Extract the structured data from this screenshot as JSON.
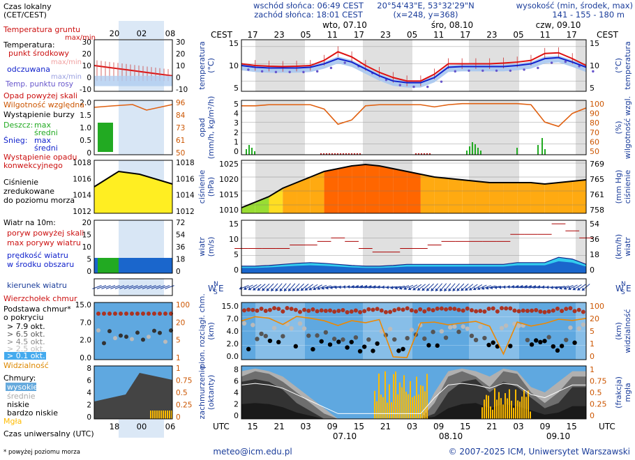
{
  "header": {
    "sunrise": "wschód słońca: 06:49 CEST",
    "sunset": "zachód słońca: 18:01 CEST",
    "coords": "20°54'43\"E, 53°32'29\"N",
    "grid": "(x=248, y=368)",
    "height_label": "wysokość (min, środek, max)",
    "height_values": "141 - 155 - 180 m"
  },
  "legend": {
    "local_time": "Czas lokalny",
    "local_time_sub": "(CET/CEST)",
    "soil_temp": "Temperatura gruntu",
    "soil_temp_sub": "max/min",
    "temperature": "Temperatura:",
    "mid_point": "punkt środkowy",
    "max_min": "max/min",
    "felt": "odczuwana",
    "felt_max_min": "max/min",
    "dew_point": "Temp. punktu rosy",
    "precip_above": "Opad powyżej skali",
    "rel_humidity": "Wilgotność względna",
    "storm": "Wystąpienie burzy",
    "rain": "Deszcz:",
    "rain_max": "max",
    "rain_mid": "średni",
    "snow": "Śnieg:",
    "snow_max": "max",
    "snow_mid": "średni",
    "conv": "Wystąpienie opadu",
    "conv2": "konwekcyjnego",
    "pressure1": "Ciśnienie",
    "pressure2": "zredukowane",
    "pressure3": "do poziomu morza",
    "wind_title": "Wiatr na 10m:",
    "gust_above": "poryw powyżej skali",
    "gust_max": "max porywy wiatru",
    "wind_speed": "prędkość wiatru",
    "wind_speed2": "w środku obszaru",
    "wind_dir": "kierunek wiatru",
    "cloud_top": "Wierzchołek chmur",
    "cloud_base": "Podstawa chmur*",
    "coverage": "o pokryciu",
    "okt1": "> 7.9 okt.",
    "okt2": "> 6.5 okt.",
    "okt3": "> 4.5 okt.",
    "okt4": "> 2.5 okt.",
    "okt5": "> 0.1 okt.",
    "visibility": "Widzialność",
    "clouds": "Chmury:",
    "high": "wysokie",
    "mid": "średnie",
    "low": "niskie",
    "very_low": "bardzo niskie",
    "fog": "Mgła",
    "utc_time": "Czas uniwersalny (UTC)",
    "footnote": "* powyżej poziomu morza"
  },
  "mini_ticks_top": [
    "20",
    "02",
    "08"
  ],
  "mini_ticks_bottom": [
    "18",
    "00",
    "06"
  ],
  "top_axis": {
    "tz": "CEST",
    "hours": [
      "17",
      "23",
      "05",
      "11",
      "17",
      "23",
      "05",
      "11",
      "17",
      "23",
      "05",
      "11",
      "17"
    ],
    "days": [
      "wto, 07.10",
      "śro, 08.10",
      "czw, 09.10"
    ]
  },
  "bottom_axis": {
    "tz": "UTC",
    "hours": [
      "15",
      "21",
      "03",
      "09",
      "15",
      "21",
      "03",
      "09",
      "15",
      "21",
      "03",
      "09",
      "15"
    ],
    "dates": [
      "07.10",
      "08.10",
      "09.10"
    ]
  },
  "panels": {
    "temp": {
      "left": "temperatura",
      "left2": "(°C)",
      "right": "temperatura",
      "right2": "(°C)",
      "ticks": [
        "15",
        "10",
        "5"
      ],
      "ticks_r": [
        "15",
        "10",
        "5"
      ]
    },
    "precip": {
      "left": "opad",
      "left2": "(mm/h, kg/m²/h)",
      "right": "wilgotność wzgl.",
      "right2": "(%)",
      "ticks": [
        "5",
        "4",
        "3",
        "2",
        "1",
        "0"
      ],
      "ticks_r": [
        "100",
        "90",
        "80",
        "70",
        "60",
        "50"
      ]
    },
    "press": {
      "left": "ciśnienie",
      "left2": "(hPa)",
      "right": "ciśnienie",
      "right2": "(mm Hg)",
      "ticks": [
        "1025",
        "1020",
        "1015",
        "1010"
      ],
      "ticks_r": [
        "769",
        "765",
        "761",
        "758"
      ]
    },
    "wind": {
      "left": "wiatr",
      "left2": "(m/s)",
      "right": "wiatr",
      "right2": "(km/h)",
      "ticks": [
        "15",
        "10",
        "5",
        "0"
      ],
      "ticks_r": [
        "54",
        "36",
        "18",
        "0"
      ]
    },
    "cloud": {
      "left": "pion. rozciągł. chm.",
      "left2": "(km)",
      "right": "widzialność",
      "right2": "(km)",
      "ticks": [
        "15.0",
        "7.0",
        "4.0",
        "2.0",
        "0.0"
      ],
      "ticks_r": [
        "100",
        "20",
        "5",
        "1",
        "0"
      ]
    },
    "cover": {
      "left": "zachmurzenie",
      "left2": "(oktanty)",
      "right": "mgła",
      "right2": "(frakcja)",
      "ticks": [
        "8",
        "6",
        "4",
        "2",
        "0"
      ],
      "ticks_r": [
        "1",
        "0.75",
        "0.5",
        "0.25",
        "0"
      ]
    }
  },
  "mini_ticks": {
    "temp": [
      "30",
      "20",
      "10",
      "0",
      "-10"
    ],
    "temp_r": [
      "30",
      "20",
      "10",
      "0",
      "-10"
    ],
    "precip": [
      "2.0",
      "1.5",
      "1.0",
      "0.5",
      "0"
    ],
    "precip_r": [
      "96",
      "84",
      "73",
      "61",
      "50"
    ],
    "press": [
      "1018",
      "1016",
      "1014",
      "1012"
    ],
    "press_r": [
      "1018",
      "1016",
      "1014",
      "1012"
    ],
    "wind": [
      "20",
      "15",
      "10",
      "5",
      "0"
    ],
    "wind_r": [
      "72",
      "54",
      "36",
      "18",
      "0"
    ],
    "cloud": [
      "15.0",
      "7.0",
      "2.0",
      "0.0"
    ],
    "cloud_r": [
      "100",
      "20",
      "5",
      "1"
    ],
    "cover": [
      "8",
      "6",
      "4",
      "2",
      "0"
    ],
    "cover_r": [
      "1",
      "0.75",
      "0.5",
      "0.25",
      "0"
    ]
  },
  "footer": {
    "email": "meteo@icm.edu.pl",
    "copyright": "© 2007-2025 ICM, Uniwersytet Warszawski"
  },
  "colors": {
    "temp": "#dd1111",
    "felt": "#1122cc",
    "dew": "#6655cc",
    "humidity": "#e06010",
    "rain": "#22aa22",
    "wind": "#1a4fc0",
    "gust": "#aa0000",
    "visibility": "#ee8800",
    "fog": "#ffbb00",
    "pressure_low": "#99dd33",
    "pressure_mid": "#ffdd22",
    "pressure_high": "#ff6600"
  },
  "chart_data": {
    "type": "line",
    "x_hours_utc": [
      15,
      18,
      21,
      0,
      3,
      6,
      9,
      12,
      15,
      18,
      21,
      0,
      3,
      6,
      9,
      12,
      15,
      18,
      21,
      0,
      3,
      6,
      9,
      12,
      15,
      18
    ],
    "temperature_c": [
      10,
      9.5,
      9.3,
      9.2,
      9.3,
      9.5,
      11,
      13.5,
      12,
      9.5,
      7.5,
      6,
      5,
      5,
      7,
      10,
      10,
      10,
      10,
      10.2,
      10.5,
      11,
      13,
      13.2,
      11.5,
      9.5
    ],
    "felt_temperature_c": [
      9.5,
      9,
      8.8,
      8.8,
      8.8,
      9,
      10,
      11.5,
      10.5,
      8.5,
      6.5,
      5,
      4.5,
      4.5,
      6,
      9,
      9.2,
      9.2,
      9.2,
      9.2,
      9.5,
      10,
      11.5,
      11.8,
      10.5,
      9
    ],
    "relative_humidity_pct": [
      95,
      95,
      96,
      96,
      96,
      96,
      92,
      78,
      82,
      95,
      96,
      96,
      96,
      96,
      94,
      96,
      97,
      97,
      97,
      97,
      97,
      96,
      80,
      76,
      88,
      93
    ],
    "pressure_hpa": [
      1009,
      1011,
      1013,
      1016,
      1018,
      1020,
      1022,
      1023,
      1024,
      1024.5,
      1024,
      1023,
      1022,
      1021,
      1020,
      1019.5,
      1019,
      1018.5,
      1018,
      1018,
      1018,
      1018,
      1017.5,
      1018,
      1018.5,
      1019
    ],
    "wind_speed_ms": [
      2,
      2,
      2.2,
      2.5,
      2.8,
      3,
      2.8,
      2.5,
      2.2,
      2,
      2,
      2.2,
      2.5,
      2.5,
      2.5,
      2.5,
      2.5,
      2.5,
      2.5,
      2.5,
      3,
      3,
      3,
      4.5,
      4,
      2.5
    ],
    "gust_ms": [
      7,
      7,
      7,
      7,
      8,
      8,
      9,
      10,
      9,
      7,
      6,
      6,
      7,
      7,
      8,
      9,
      9,
      9,
      9,
      9,
      11,
      11,
      11,
      14,
      12,
      10
    ],
    "fog_fraction_max": 0.9,
    "ylim": {
      "temperature": [
        2,
        17
      ],
      "humidity": [
        50,
        100
      ],
      "pressure": [
        1007,
        1026
      ],
      "wind": [
        0,
        18
      ]
    }
  }
}
